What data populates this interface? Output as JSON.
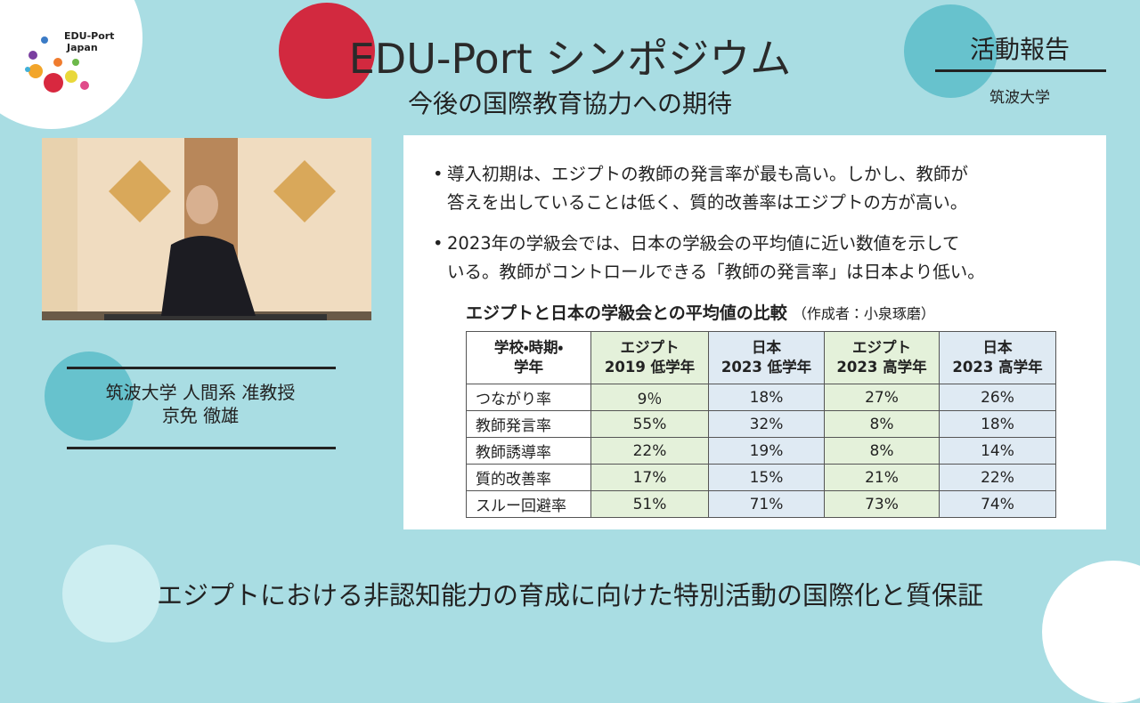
{
  "logo": {
    "line1": "EDU-Port",
    "line2": "Japan"
  },
  "header": {
    "title": "EDU-Port シンポジウム",
    "subtitle": "今後の国際教育協力への期待",
    "section": "活動報告",
    "university": "筑波大学"
  },
  "speaker": {
    "affiliation": "筑波大学 人間系 准教授",
    "name": "京免 徹雄"
  },
  "slide": {
    "bullets": [
      [
        "導入初期は、エジプトの教師の発言率が最も高い。しかし、教師が",
        "答えを出していることは低く、質的改善率はエジプトの方が高い。"
      ],
      [
        "2023年の学級会では、日本の学級会の平均値に近い数値を示して",
        "いる。教師がコントロールできる「教師の発言率」は日本より低い。"
      ]
    ],
    "table_title": "エジプトと日本の学級会との平均値の比較",
    "table_note": "（作成者：小泉琢磨）",
    "table": {
      "header": [
        [
          "学校・時期・",
          "学年"
        ],
        [
          "エジプト",
          "2019 低学年"
        ],
        [
          "日本",
          "2023 低学年"
        ],
        [
          "エジプト",
          "2023 高学年"
        ],
        [
          "日本",
          "2023 高学年"
        ]
      ],
      "rows": [
        [
          "つながり率",
          "9％",
          "18%",
          "27%",
          "26%"
        ],
        [
          "教師発言率",
          "55%",
          "32%",
          "8%",
          "18%"
        ],
        [
          "教師誘導率",
          "22%",
          "19%",
          "8%",
          "14%"
        ],
        [
          "質的改善率",
          "17%",
          "15%",
          "21%",
          "22%"
        ],
        [
          "スルー回避率",
          "51%",
          "71%",
          "73%",
          "74%"
        ]
      ]
    }
  },
  "footer": {
    "caption": "エジプトにおける非認知能力の育成に向けた特別活動の国際化と質保証"
  }
}
